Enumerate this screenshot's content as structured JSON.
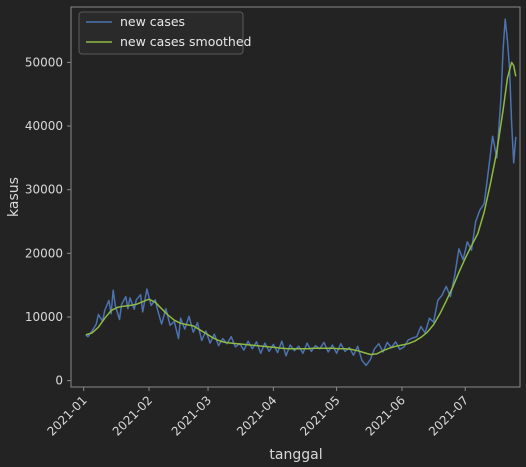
{
  "chart_data": {
    "type": "line",
    "title": "",
    "xlabel": "tanggal",
    "ylabel": "kasus",
    "x_range": [
      "2020-12-26",
      "2021-07-27"
    ],
    "ylim": [
      -1000,
      58700
    ],
    "x_ticks": [
      "2021-01",
      "2021-02",
      "2021-03",
      "2021-04",
      "2021-05",
      "2021-06",
      "2021-07"
    ],
    "y_ticks": [
      "0",
      "10000",
      "20000",
      "30000",
      "40000",
      "50000"
    ],
    "legend_position": "top-left",
    "grid": false,
    "colors": {
      "background": "#232323",
      "axes_edge": "#8a8a8a"
    },
    "series": [
      {
        "name": "new cases",
        "color": "#4c72b0",
        "points": [
          [
            "2021-01-02",
            7200
          ],
          [
            "2021-01-03",
            6900
          ],
          [
            "2021-01-05",
            7800
          ],
          [
            "2021-01-07",
            8900
          ],
          [
            "2021-01-08",
            10400
          ],
          [
            "2021-01-10",
            9300
          ],
          [
            "2021-01-11",
            11000
          ],
          [
            "2021-01-13",
            12600
          ],
          [
            "2021-01-14",
            10500
          ],
          [
            "2021-01-15",
            14200
          ],
          [
            "2021-01-16",
            11800
          ],
          [
            "2021-01-18",
            9600
          ],
          [
            "2021-01-19",
            12000
          ],
          [
            "2021-01-21",
            13200
          ],
          [
            "2021-01-22",
            11300
          ],
          [
            "2021-01-23",
            13000
          ],
          [
            "2021-01-25",
            11200
          ],
          [
            "2021-01-26",
            12700
          ],
          [
            "2021-01-28",
            13500
          ],
          [
            "2021-01-29",
            10800
          ],
          [
            "2021-01-31",
            14400
          ],
          [
            "2021-02-02",
            11800
          ],
          [
            "2021-02-04",
            12700
          ],
          [
            "2021-02-05",
            11200
          ],
          [
            "2021-02-07",
            8900
          ],
          [
            "2021-02-09",
            11300
          ],
          [
            "2021-02-11",
            8700
          ],
          [
            "2021-02-13",
            9300
          ],
          [
            "2021-02-15",
            6600
          ],
          [
            "2021-02-16",
            9800
          ],
          [
            "2021-02-18",
            8100
          ],
          [
            "2021-02-20",
            10100
          ],
          [
            "2021-02-22",
            7600
          ],
          [
            "2021-02-24",
            9100
          ],
          [
            "2021-02-26",
            6300
          ],
          [
            "2021-02-28",
            7800
          ],
          [
            "2021-03-02",
            5900
          ],
          [
            "2021-03-04",
            7300
          ],
          [
            "2021-03-06",
            5500
          ],
          [
            "2021-03-08",
            6600
          ],
          [
            "2021-03-10",
            5800
          ],
          [
            "2021-03-12",
            6900
          ],
          [
            "2021-03-14",
            5300
          ],
          [
            "2021-03-16",
            5800
          ],
          [
            "2021-03-18",
            4800
          ],
          [
            "2021-03-20",
            6200
          ],
          [
            "2021-03-22",
            5000
          ],
          [
            "2021-03-24",
            6100
          ],
          [
            "2021-03-26",
            4300
          ],
          [
            "2021-03-28",
            5900
          ],
          [
            "2021-03-30",
            4600
          ],
          [
            "2021-04-01",
            5700
          ],
          [
            "2021-04-03",
            4400
          ],
          [
            "2021-04-05",
            6200
          ],
          [
            "2021-04-07",
            3900
          ],
          [
            "2021-04-09",
            5600
          ],
          [
            "2021-04-11",
            4700
          ],
          [
            "2021-04-13",
            5400
          ],
          [
            "2021-04-15",
            4300
          ],
          [
            "2021-04-17",
            5900
          ],
          [
            "2021-04-19",
            4600
          ],
          [
            "2021-04-21",
            5500
          ],
          [
            "2021-04-23",
            5000
          ],
          [
            "2021-04-25",
            6000
          ],
          [
            "2021-04-27",
            4500
          ],
          [
            "2021-04-29",
            5600
          ],
          [
            "2021-05-01",
            4300
          ],
          [
            "2021-05-03",
            5800
          ],
          [
            "2021-05-05",
            4600
          ],
          [
            "2021-05-07",
            5200
          ],
          [
            "2021-05-09",
            4000
          ],
          [
            "2021-05-11",
            5400
          ],
          [
            "2021-05-13",
            3200
          ],
          [
            "2021-05-15",
            2400
          ],
          [
            "2021-05-17",
            3300
          ],
          [
            "2021-05-19",
            5000
          ],
          [
            "2021-05-21",
            5800
          ],
          [
            "2021-05-23",
            4500
          ],
          [
            "2021-05-25",
            6000
          ],
          [
            "2021-05-27",
            5200
          ],
          [
            "2021-05-29",
            6100
          ],
          [
            "2021-05-31",
            4900
          ],
          [
            "2021-06-02",
            5300
          ],
          [
            "2021-06-04",
            6400
          ],
          [
            "2021-06-06",
            6700
          ],
          [
            "2021-06-08",
            6900
          ],
          [
            "2021-06-10",
            8500
          ],
          [
            "2021-06-12",
            7500
          ],
          [
            "2021-06-14",
            9800
          ],
          [
            "2021-06-16",
            9200
          ],
          [
            "2021-06-18",
            12600
          ],
          [
            "2021-06-20",
            13400
          ],
          [
            "2021-06-22",
            14800
          ],
          [
            "2021-06-24",
            13200
          ],
          [
            "2021-06-26",
            16500
          ],
          [
            "2021-06-28",
            20700
          ],
          [
            "2021-06-30",
            19000
          ],
          [
            "2021-07-02",
            21800
          ],
          [
            "2021-07-04",
            20500
          ],
          [
            "2021-07-06",
            25000
          ],
          [
            "2021-07-08",
            26800
          ],
          [
            "2021-07-10",
            27800
          ],
          [
            "2021-07-12",
            33000
          ],
          [
            "2021-07-14",
            38400
          ],
          [
            "2021-07-16",
            35000
          ],
          [
            "2021-07-18",
            44500
          ],
          [
            "2021-07-19",
            52000
          ],
          [
            "2021-07-20",
            56800
          ],
          [
            "2021-07-21",
            53500
          ],
          [
            "2021-07-22",
            49200
          ],
          [
            "2021-07-23",
            40500
          ],
          [
            "2021-07-24",
            34200
          ],
          [
            "2021-07-25",
            38300
          ]
        ]
      },
      {
        "name": "new cases smoothed",
        "color": "#8eba42",
        "points": [
          [
            "2021-01-02",
            7200
          ],
          [
            "2021-01-05",
            7500
          ],
          [
            "2021-01-08",
            8400
          ],
          [
            "2021-01-11",
            9800
          ],
          [
            "2021-01-14",
            11000
          ],
          [
            "2021-01-17",
            11500
          ],
          [
            "2021-01-20",
            11700
          ],
          [
            "2021-01-23",
            11800
          ],
          [
            "2021-01-26",
            12000
          ],
          [
            "2021-01-29",
            12400
          ],
          [
            "2021-02-01",
            12800
          ],
          [
            "2021-02-04",
            12300
          ],
          [
            "2021-02-07",
            11300
          ],
          [
            "2021-02-10",
            10300
          ],
          [
            "2021-02-13",
            9500
          ],
          [
            "2021-02-16",
            9000
          ],
          [
            "2021-02-19",
            8800
          ],
          [
            "2021-02-22",
            8600
          ],
          [
            "2021-02-25",
            8000
          ],
          [
            "2021-02-28",
            7400
          ],
          [
            "2021-03-03",
            6800
          ],
          [
            "2021-03-06",
            6300
          ],
          [
            "2021-03-09",
            6000
          ],
          [
            "2021-03-12",
            5900
          ],
          [
            "2021-03-15",
            5800
          ],
          [
            "2021-03-18",
            5700
          ],
          [
            "2021-03-21",
            5600
          ],
          [
            "2021-03-24",
            5500
          ],
          [
            "2021-03-27",
            5400
          ],
          [
            "2021-03-30",
            5300
          ],
          [
            "2021-04-02",
            5200
          ],
          [
            "2021-04-05",
            5100
          ],
          [
            "2021-04-08",
            5000
          ],
          [
            "2021-04-11",
            5000
          ],
          [
            "2021-04-14",
            5000
          ],
          [
            "2021-04-17",
            5000
          ],
          [
            "2021-04-20",
            5100
          ],
          [
            "2021-04-23",
            5100
          ],
          [
            "2021-04-26",
            5100
          ],
          [
            "2021-04-29",
            5100
          ],
          [
            "2021-05-02",
            5000
          ],
          [
            "2021-05-05",
            5000
          ],
          [
            "2021-05-08",
            4900
          ],
          [
            "2021-05-11",
            4700
          ],
          [
            "2021-05-14",
            4400
          ],
          [
            "2021-05-17",
            4100
          ],
          [
            "2021-05-20",
            4200
          ],
          [
            "2021-05-23",
            4700
          ],
          [
            "2021-05-26",
            5100
          ],
          [
            "2021-05-29",
            5400
          ],
          [
            "2021-06-01",
            5600
          ],
          [
            "2021-06-04",
            5800
          ],
          [
            "2021-06-07",
            6200
          ],
          [
            "2021-06-10",
            6800
          ],
          [
            "2021-06-13",
            7600
          ],
          [
            "2021-06-16",
            8800
          ],
          [
            "2021-06-19",
            10500
          ],
          [
            "2021-06-22",
            12500
          ],
          [
            "2021-06-25",
            14600
          ],
          [
            "2021-06-28",
            17000
          ],
          [
            "2021-07-01",
            19200
          ],
          [
            "2021-07-04",
            21200
          ],
          [
            "2021-07-07",
            23100
          ],
          [
            "2021-07-10",
            26500
          ],
          [
            "2021-07-13",
            31000
          ],
          [
            "2021-07-16",
            36000
          ],
          [
            "2021-07-19",
            42500
          ],
          [
            "2021-07-21",
            47500
          ],
          [
            "2021-07-23",
            50000
          ],
          [
            "2021-07-24",
            49500
          ],
          [
            "2021-07-25",
            47800
          ]
        ]
      }
    ]
  }
}
